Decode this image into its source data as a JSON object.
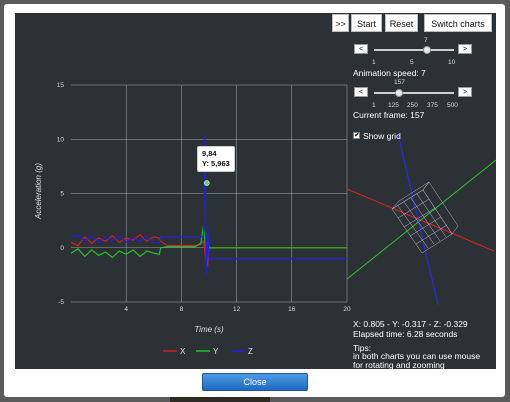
{
  "toolbar": {
    "toggle_label": ">>",
    "start_label": "Start",
    "reset_label": "Reset",
    "switch_label": "Switch charts"
  },
  "animation": {
    "value_label": "7",
    "min_label": "1",
    "mid_label": "5",
    "max_label": "10",
    "text": "Animation speed: 7",
    "value": 7
  },
  "frame": {
    "value_label": "157",
    "ticks": [
      "1",
      "125",
      "250",
      "375",
      "500"
    ],
    "text": "Current frame: 157",
    "value": 157
  },
  "grid_label": "Show grid",
  "readout": {
    "coords": "X: 0.805 - Y: -0.317 - Z: -0.329",
    "elapsed": "Elapsed time: 6.28 seconds"
  },
  "tips": {
    "title": "Tips:",
    "text": "in both charts you can use mouse for rotating and zooming functionality."
  },
  "close_label": "Close",
  "icons": {
    "prev": "<",
    "next": ">",
    "check": "✔"
  },
  "chart_data": {
    "type": "line",
    "xlabel": "Time (s)",
    "ylabel": "Acceleration (g)",
    "xlim": [
      0,
      20
    ],
    "ylim": [
      -5,
      15
    ],
    "x_ticks": [
      "4",
      "8",
      "12",
      "16",
      "20"
    ],
    "y_ticks": [
      "15",
      "10",
      "5",
      "0",
      "-5"
    ],
    "grid": true,
    "legend_position": "bottom",
    "tooltip": {
      "x_text": "9,84",
      "y_text": "Y: 5,963",
      "x": 9.84,
      "y": 5.963
    },
    "series": [
      {
        "name": "X",
        "color": "#d62020",
        "x": [
          0,
          0.5,
          1,
          1.5,
          2,
          2.5,
          3,
          3.5,
          4,
          4.5,
          5,
          5.5,
          6,
          6.4,
          6.5,
          7,
          8,
          9,
          9.4,
          9.6,
          9.8,
          9.9,
          10,
          10.5,
          12,
          16,
          20
        ],
        "y": [
          0.5,
          0.2,
          1.0,
          0.4,
          0.9,
          0.6,
          1.1,
          0.5,
          0.9,
          0.7,
          1.2,
          0.6,
          1.0,
          0.9,
          0.6,
          0.2,
          0.2,
          0.2,
          0.3,
          0.6,
          -1.3,
          -1.7,
          0.0,
          0.0,
          0.0,
          0.0,
          0.0
        ]
      },
      {
        "name": "Y",
        "color": "#22c322",
        "x": [
          0,
          0.5,
          1,
          1.5,
          2,
          2.5,
          3,
          3.5,
          4,
          4.5,
          5,
          5.5,
          6,
          6.4,
          6.5,
          7,
          8,
          9,
          9.4,
          9.6,
          9.8,
          9.9,
          10,
          10.5,
          12,
          16,
          20
        ],
        "y": [
          -0.5,
          -0.1,
          -0.8,
          -0.2,
          -0.7,
          -0.4,
          -0.9,
          -0.3,
          -0.6,
          -0.2,
          -0.8,
          -0.3,
          -0.5,
          -0.6,
          0.0,
          0.1,
          0.1,
          0.1,
          0.4,
          2.0,
          -0.5,
          0.8,
          0.0,
          0.0,
          0.0,
          0.0,
          0.0
        ]
      },
      {
        "name": "Z",
        "color": "#2020e0",
        "x": [
          0,
          0.5,
          1,
          1.5,
          2,
          2.5,
          3,
          3.5,
          4,
          4.5,
          5,
          5.5,
          6,
          6.4,
          6.5,
          8,
          9,
          9.6,
          9.7,
          9.8,
          9.9,
          10,
          10.5,
          12,
          16,
          20
        ],
        "y": [
          1.0,
          1.2,
          0.6,
          1.1,
          0.5,
          1.0,
          0.6,
          1.1,
          0.5,
          0.9,
          0.6,
          1.0,
          0.5,
          0.4,
          1.0,
          1.0,
          1.0,
          1.0,
          10.3,
          -2.5,
          2.0,
          -1.0,
          -1.0,
          -1.0,
          -1.0,
          -1.0
        ]
      }
    ]
  }
}
